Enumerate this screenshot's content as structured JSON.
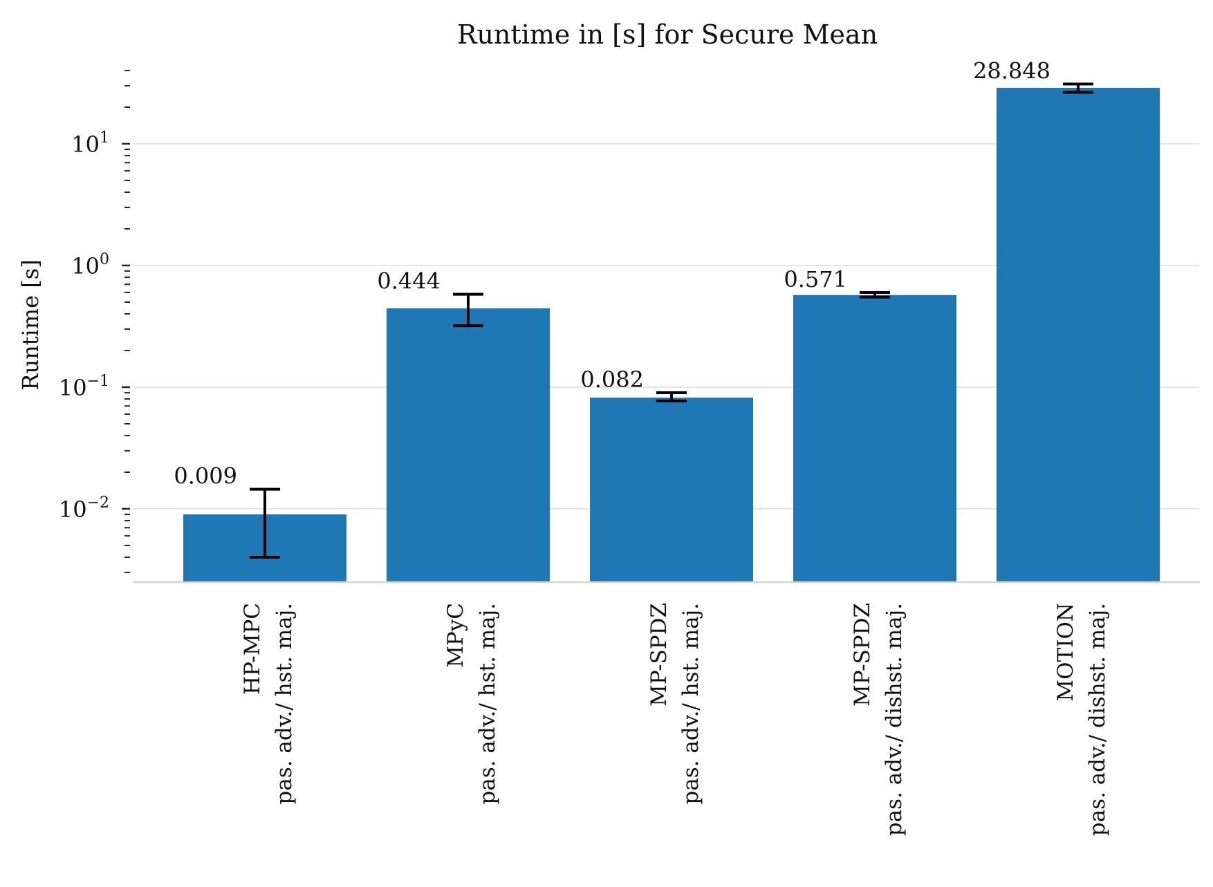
{
  "chart_data": {
    "type": "bar",
    "title": "Runtime in [s] for Secure Mean",
    "xlabel": "",
    "ylabel": "Runtime [s]",
    "yscale": "log",
    "ylim": [
      0.0025,
      45
    ],
    "yticks": [
      {
        "value": 0.01,
        "base": "10",
        "exp": "−2"
      },
      {
        "value": 0.1,
        "base": "10",
        "exp": "−1"
      },
      {
        "value": 1,
        "base": "10",
        "exp": "0"
      },
      {
        "value": 10,
        "base": "10",
        "exp": "1"
      }
    ],
    "grid": "horizontal",
    "bar_color": "#1f77b4",
    "categories": [
      {
        "line1": "HP-MPC",
        "line2": "pas. adv./ hst. maj."
      },
      {
        "line1": "MPyC",
        "line2": "pas. adv./ hst. maj."
      },
      {
        "line1": "MP-SPDZ",
        "line2": "pas. adv./ hst. maj."
      },
      {
        "line1": "MP-SPDZ",
        "line2": "pas. adv./ dishst. maj."
      },
      {
        "line1": "MOTION",
        "line2": "pas. adv./ dishst. maj."
      }
    ],
    "values": [
      0.009,
      0.444,
      0.082,
      0.571,
      28.848
    ],
    "value_labels": [
      "0.009",
      "0.444",
      "0.082",
      "0.571",
      "28.848"
    ],
    "error_low": [
      0.004,
      0.32,
      0.077,
      0.55,
      26.5
    ],
    "error_high": [
      0.0145,
      0.58,
      0.09,
      0.6,
      31.0
    ]
  }
}
